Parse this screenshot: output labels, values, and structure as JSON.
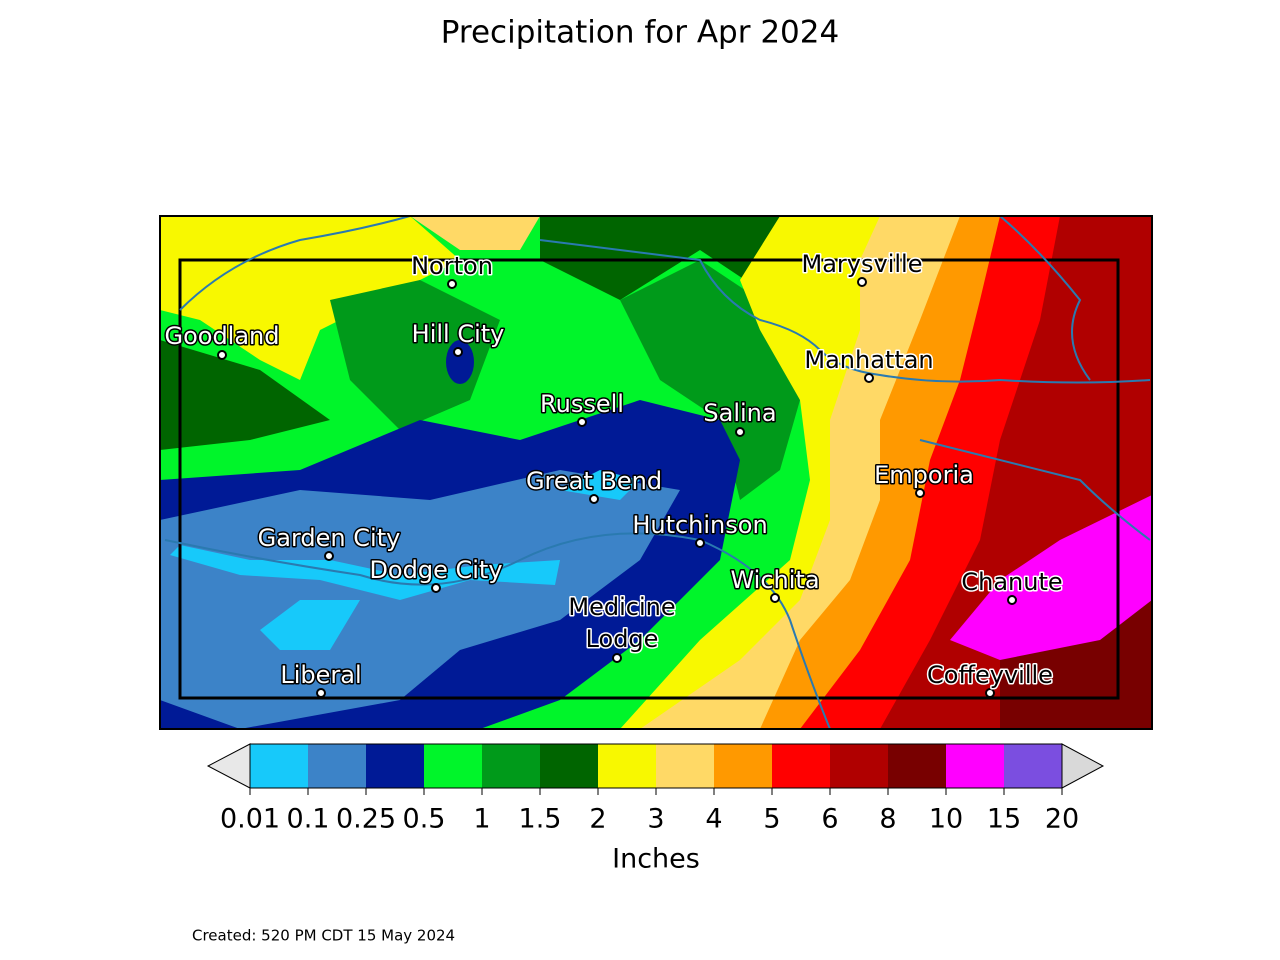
{
  "title": "Precipitation for Apr 2024",
  "cities": [
    {
      "name": "Norton"
    },
    {
      "name": "Marysville"
    },
    {
      "name": "Goodland"
    },
    {
      "name": "Hill City"
    },
    {
      "name": "Manhattan"
    },
    {
      "name": "Russell"
    },
    {
      "name": "Salina"
    },
    {
      "name": "Emporia"
    },
    {
      "name": "Great Bend"
    },
    {
      "name": "Hutchinson"
    },
    {
      "name": "Garden City"
    },
    {
      "name": "Dodge City"
    },
    {
      "name": "Wichita"
    },
    {
      "name": "Chanute"
    },
    {
      "name": "Medicine\nLodge"
    },
    {
      "name": "Liberal"
    },
    {
      "name": "Coffeyville"
    }
  ],
  "colorbar": {
    "label": "Inches",
    "ticks": [
      0.01,
      0.1,
      0.25,
      0.5,
      1,
      1.5,
      2,
      3,
      4,
      5,
      6,
      8,
      10,
      15,
      20
    ],
    "colors": [
      "#17c9fa",
      "#3c83c8",
      "#001a96",
      "#00f52a",
      "#009a1a",
      "#006500",
      "#f8f800",
      "#ffd966",
      "#ff9900",
      "#ff0000",
      "#b00000",
      "#780000",
      "#ff00ff",
      "#7b4ee0"
    ]
  },
  "footer": "Created: 520 PM CDT 15 May 2024"
}
